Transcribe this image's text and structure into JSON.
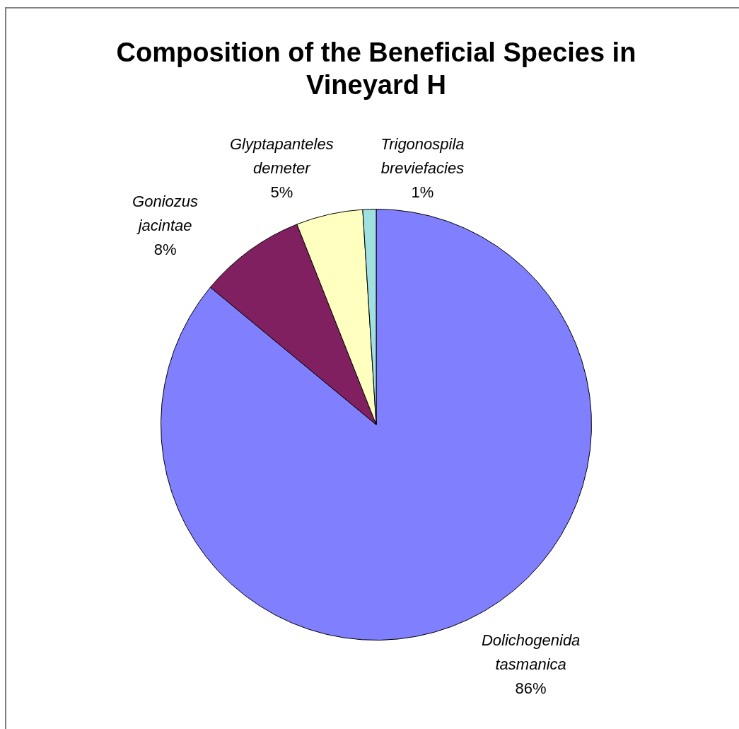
{
  "chart_data": {
    "type": "pie",
    "title": "Composition of the Beneficial Species in Vineyard H",
    "categories": [
      "Dolichogenida tasmanica",
      "Goniozus jacintae",
      "Glyptapanteles demeter",
      "Trigonospila breviefacies"
    ],
    "values": [
      86,
      8,
      5,
      1
    ],
    "value_labels": [
      "86%",
      "8%",
      "5%",
      "1%"
    ],
    "colors": [
      "#8080ff",
      "#802060",
      "#ffffc0",
      "#a0e0e0"
    ]
  }
}
